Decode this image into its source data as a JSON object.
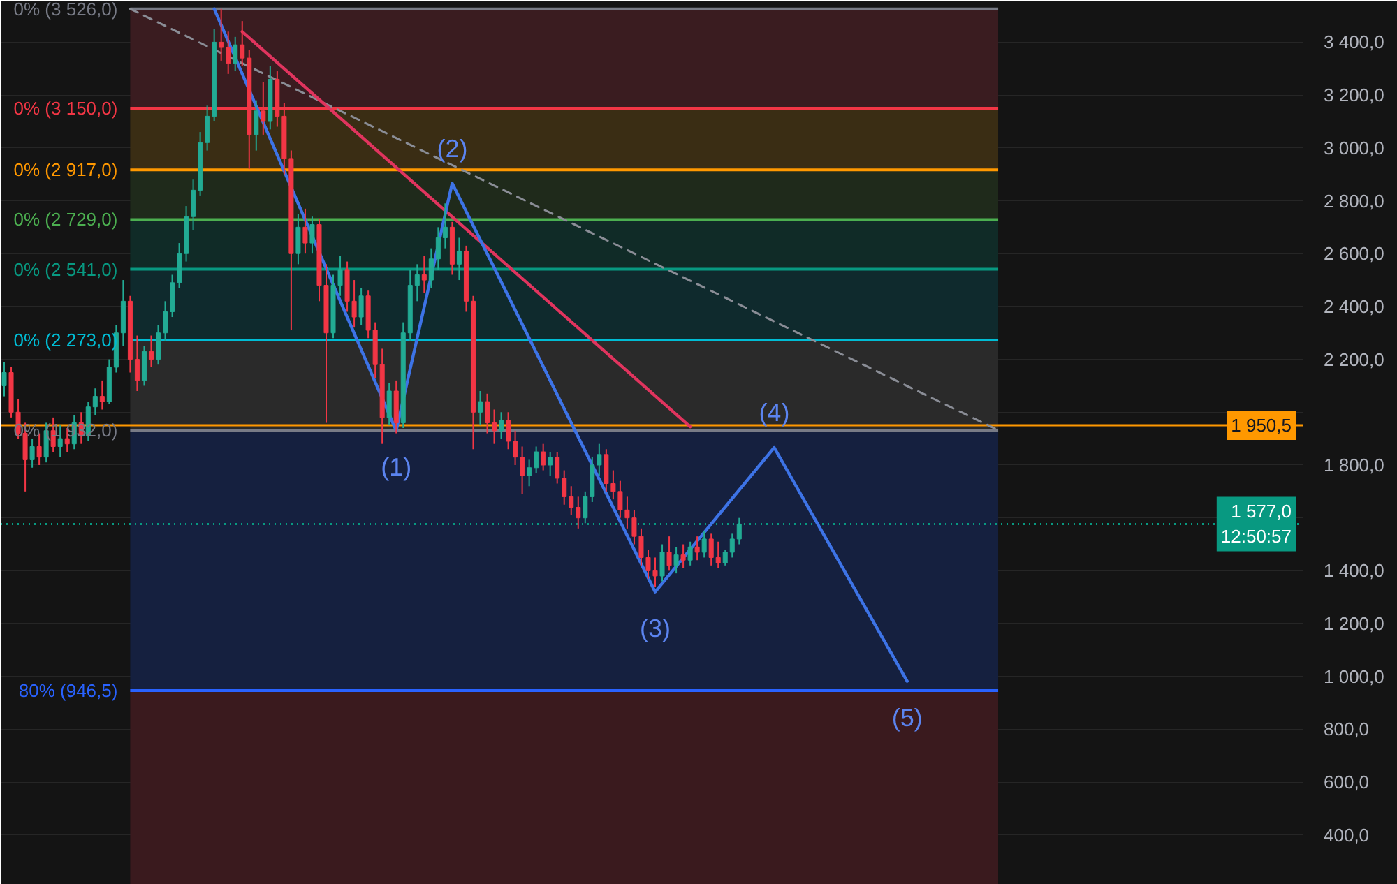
{
  "chart_data": {
    "type": "candlestick",
    "categories": [
      null,
      null,
      null,
      null,
      null,
      null,
      null,
      null,
      null,
      null,
      null,
      null,
      null,
      null,
      null,
      null,
      null,
      null,
      null,
      null,
      null,
      null,
      null,
      null,
      null,
      null,
      null,
      null,
      null,
      null,
      null,
      null,
      null,
      null,
      null,
      null,
      null,
      null,
      null,
      null,
      null,
      null,
      null,
      null,
      null,
      null,
      null,
      null,
      null,
      null,
      null,
      null,
      null,
      null,
      null,
      null,
      null,
      null,
      null,
      null,
      null,
      null,
      null,
      null,
      null,
      null,
      null,
      null,
      null,
      null,
      null,
      null,
      null,
      null,
      null,
      null,
      null,
      null,
      null,
      null,
      null,
      null,
      null,
      null,
      null,
      null,
      null,
      null,
      null,
      null,
      null,
      null,
      null,
      null,
      null,
      null,
      null,
      null,
      null,
      null,
      null,
      null,
      null,
      null,
      null,
      null,
      null,
      null,
      null,
      null,
      null,
      null,
      null,
      null,
      null,
      null,
      null,
      null,
      null,
      null,
      null,
      null,
      null,
      null,
      null,
      null,
      null,
      null,
      null,
      null,
      null,
      null,
      null,
      null,
      null,
      null,
      null,
      null,
      null,
      null,
      null,
      null,
      null,
      null,
      null,
      null,
      null,
      null,
      null,
      null,
      null,
      null,
      null,
      null,
      null,
      null,
      null,
      null,
      null,
      null,
      null,
      null,
      null,
      null,
      null,
      null,
      null,
      null,
      null,
      null,
      null,
      null,
      null,
      null,
      null,
      null,
      null,
      null,
      null,
      null,
      null,
      null,
      null,
      null,
      null,
      null
    ],
    "ohlc": [
      [
        2100,
        2190,
        2060,
        2150
      ],
      [
        2150,
        2170,
        1980,
        2000
      ],
      [
        2000,
        2050,
        1900,
        1920
      ],
      [
        1920,
        1960,
        1700,
        1820
      ],
      [
        1820,
        1900,
        1790,
        1870
      ],
      [
        1870,
        1920,
        1800,
        1830
      ],
      [
        1830,
        1960,
        1810,
        1930
      ],
      [
        1930,
        1980,
        1850,
        1870
      ],
      [
        1870,
        1950,
        1830,
        1900
      ],
      [
        1900,
        1940,
        1850,
        1880
      ],
      [
        1880,
        1990,
        1860,
        1960
      ],
      [
        1960,
        2000,
        1880,
        1910
      ],
      [
        1910,
        2040,
        1890,
        2020
      ],
      [
        2020,
        2090,
        1990,
        2060
      ],
      [
        2060,
        2120,
        2010,
        2040
      ],
      [
        2040,
        2200,
        2030,
        2170
      ],
      [
        2170,
        2330,
        2150,
        2300
      ],
      [
        2300,
        2500,
        2250,
        2420
      ],
      [
        2420,
        2440,
        2150,
        2200
      ],
      [
        2200,
        2290,
        2080,
        2120
      ],
      [
        2120,
        2250,
        2100,
        2230
      ],
      [
        2230,
        2290,
        2170,
        2200
      ],
      [
        2200,
        2330,
        2180,
        2300
      ],
      [
        2300,
        2420,
        2270,
        2380
      ],
      [
        2380,
        2520,
        2360,
        2490
      ],
      [
        2490,
        2640,
        2470,
        2600
      ],
      [
        2600,
        2780,
        2570,
        2740
      ],
      [
        2740,
        2880,
        2690,
        2840
      ],
      [
        2840,
        3060,
        2820,
        3020
      ],
      [
        3020,
        3160,
        2990,
        3120
      ],
      [
        3120,
        3450,
        3100,
        3400
      ],
      [
        3400,
        3526,
        3330,
        3380
      ],
      [
        3380,
        3440,
        3280,
        3320
      ],
      [
        3320,
        3420,
        3290,
        3390
      ],
      [
        3390,
        3480,
        3310,
        3340
      ],
      [
        3340,
        3370,
        2920,
        3050
      ],
      [
        3050,
        3180,
        2990,
        3140
      ],
      [
        3140,
        3250,
        3050,
        3100
      ],
      [
        3100,
        3310,
        3070,
        3260
      ],
      [
        3260,
        3290,
        3080,
        3120
      ],
      [
        3120,
        3170,
        2900,
        2960
      ],
      [
        2960,
        2990,
        2310,
        2600
      ],
      [
        2600,
        2750,
        2560,
        2700
      ],
      [
        2700,
        2770,
        2600,
        2640
      ],
      [
        2640,
        2740,
        2600,
        2710
      ],
      [
        2710,
        2730,
        2420,
        2480
      ],
      [
        2480,
        2560,
        1960,
        2300
      ],
      [
        2300,
        2520,
        2280,
        2480
      ],
      [
        2480,
        2590,
        2440,
        2540
      ],
      [
        2540,
        2570,
        2380,
        2420
      ],
      [
        2420,
        2500,
        2320,
        2360
      ],
      [
        2360,
        2470,
        2330,
        2440
      ],
      [
        2440,
        2460,
        2280,
        2310
      ],
      [
        2310,
        2340,
        2130,
        2180
      ],
      [
        2180,
        2240,
        1880,
        1980
      ],
      [
        1980,
        2110,
        1950,
        2080
      ],
      [
        2080,
        2120,
        1920,
        1960
      ],
      [
        1960,
        2340,
        1940,
        2300
      ],
      [
        2300,
        2540,
        2270,
        2480
      ],
      [
        2480,
        2560,
        2420,
        2520
      ],
      [
        2520,
        2590,
        2450,
        2500
      ],
      [
        2500,
        2620,
        2470,
        2580
      ],
      [
        2580,
        2700,
        2540,
        2660
      ],
      [
        2660,
        2790,
        2620,
        2700
      ],
      [
        2700,
        2720,
        2520,
        2560
      ],
      [
        2560,
        2660,
        2500,
        2610
      ],
      [
        2610,
        2630,
        2380,
        2420
      ],
      [
        2420,
        2440,
        1860,
        2000
      ],
      [
        2000,
        2080,
        1950,
        2040
      ],
      [
        2040,
        2070,
        1920,
        1960
      ],
      [
        1960,
        2010,
        1880,
        1930
      ],
      [
        1930,
        2000,
        1900,
        1970
      ],
      [
        1970,
        2000,
        1860,
        1890
      ],
      [
        1890,
        1930,
        1800,
        1830
      ],
      [
        1830,
        1870,
        1690,
        1760
      ],
      [
        1760,
        1820,
        1720,
        1790
      ],
      [
        1790,
        1870,
        1770,
        1850
      ],
      [
        1850,
        1880,
        1780,
        1800
      ],
      [
        1800,
        1850,
        1760,
        1830
      ],
      [
        1830,
        1850,
        1730,
        1750
      ],
      [
        1750,
        1780,
        1650,
        1680
      ],
      [
        1680,
        1720,
        1610,
        1640
      ],
      [
        1640,
        1680,
        1560,
        1600
      ],
      [
        1600,
        1700,
        1580,
        1680
      ],
      [
        1680,
        1830,
        1660,
        1800
      ],
      [
        1800,
        1880,
        1760,
        1840
      ],
      [
        1840,
        1860,
        1700,
        1730
      ],
      [
        1730,
        1780,
        1670,
        1700
      ],
      [
        1700,
        1740,
        1600,
        1630
      ],
      [
        1630,
        1680,
        1560,
        1600
      ],
      [
        1600,
        1630,
        1500,
        1530
      ],
      [
        1530,
        1560,
        1420,
        1450
      ],
      [
        1450,
        1480,
        1370,
        1400
      ],
      [
        1400,
        1450,
        1340,
        1380
      ],
      [
        1380,
        1500,
        1360,
        1470
      ],
      [
        1470,
        1530,
        1400,
        1420
      ],
      [
        1420,
        1490,
        1390,
        1460
      ],
      [
        1460,
        1500,
        1410,
        1440
      ],
      [
        1440,
        1510,
        1420,
        1490
      ],
      [
        1490,
        1530,
        1440,
        1470
      ],
      [
        1470,
        1550,
        1450,
        1520
      ],
      [
        1520,
        1540,
        1420,
        1450
      ],
      [
        1450,
        1510,
        1410,
        1430
      ],
      [
        1430,
        1480,
        1420,
        1470
      ],
      [
        1470,
        1540,
        1450,
        1520
      ],
      [
        1520,
        1600,
        1500,
        1577
      ],
      null,
      null,
      null,
      null,
      null,
      null,
      null,
      null,
      null,
      null,
      null,
      null,
      null,
      null,
      null,
      null,
      null,
      null,
      null,
      null,
      null,
      null,
      null,
      null,
      null,
      null,
      null,
      null,
      null,
      null,
      null,
      null,
      null,
      null,
      null,
      null,
      null,
      null,
      null,
      null,
      null,
      null,
      null,
      null,
      null,
      null,
      null,
      null,
      null,
      null,
      null,
      null,
      null,
      null,
      null,
      null,
      null,
      null,
      null,
      null,
      null,
      null,
      null,
      null,
      null,
      null,
      null,
      null,
      null,
      null,
      null,
      null,
      null,
      null,
      null,
      null,
      null,
      null,
      null,
      null
    ],
    "colors": [
      "#22ab94",
      "#f23645",
      "#f23645",
      "#f23645",
      "#22ab94",
      "#f23645",
      "#22ab94",
      "#f23645",
      "#22ab94",
      "#f23645",
      "#22ab94",
      "#f23645",
      "#22ab94",
      "#22ab94",
      "#f23645",
      "#22ab94",
      "#22ab94",
      "#22ab94",
      "#f23645",
      "#f23645",
      "#22ab94",
      "#f23645",
      "#22ab94",
      "#22ab94",
      "#22ab94",
      "#22ab94",
      "#22ab94",
      "#22ab94",
      "#22ab94",
      "#22ab94",
      "#22ab94",
      "#f23645",
      "#f23645",
      "#22ab94",
      "#f23645",
      "#f23645",
      "#22ab94",
      "#f23645",
      "#22ab94",
      "#f23645",
      "#f23645",
      "#f23645",
      "#22ab94",
      "#f23645",
      "#22ab94",
      "#f23645",
      "#f23645",
      "#22ab94",
      "#22ab94",
      "#f23645",
      "#f23645",
      "#22ab94",
      "#f23645",
      "#f23645",
      "#f23645",
      "#22ab94",
      "#f23645",
      "#22ab94",
      "#22ab94",
      "#22ab94",
      "#f23645",
      "#22ab94",
      "#22ab94",
      "#22ab94",
      "#f23645",
      "#22ab94",
      "#f23645",
      "#f23645",
      "#22ab94",
      "#f23645",
      "#f23645",
      "#22ab94",
      "#f23645",
      "#f23645",
      "#f23645",
      "#22ab94",
      "#22ab94",
      "#f23645",
      "#22ab94",
      "#f23645",
      "#f23645",
      "#f23645",
      "#f23645",
      "#22ab94",
      "#22ab94",
      "#22ab94",
      "#f23645",
      "#f23645",
      "#f23645",
      "#f23645",
      "#f23645",
      "#f23645",
      "#f23645",
      "#f23645",
      "#22ab94",
      "#f23645",
      "#22ab94",
      "#f23645",
      "#22ab94",
      "#f23645",
      "#22ab94",
      "#f23645",
      "#f23645",
      "#22ab94",
      "#22ab94",
      "#22ab94",
      null,
      null,
      null,
      null,
      null,
      null,
      null,
      null,
      null,
      null,
      null,
      null,
      null,
      null,
      null,
      null,
      null,
      null,
      null,
      null,
      null,
      null,
      null,
      null,
      null,
      null,
      null,
      null,
      null,
      null,
      null,
      null,
      null,
      null,
      null,
      null,
      null,
      null,
      null,
      null,
      null,
      null,
      null,
      null,
      null,
      null,
      null,
      null,
      null,
      null,
      null,
      null,
      null,
      null,
      null,
      null,
      null,
      null,
      null,
      null,
      null,
      null,
      null,
      null,
      null,
      null,
      null,
      null,
      null,
      null,
      null,
      null,
      null,
      null,
      null,
      null,
      null,
      null,
      null,
      null
    ],
    "ylim": [
      212,
      3557
    ],
    "yticks": [
      {
        "value": 400,
        "label": "400,0"
      },
      {
        "value": 600,
        "label": "600,0"
      },
      {
        "value": 800,
        "label": "800,0"
      },
      {
        "value": 1000,
        "label": "1 000,0"
      },
      {
        "value": 1200,
        "label": "1 200,0"
      },
      {
        "value": 1400,
        "label": "1 400,0"
      },
      {
        "value": 1600,
        "label": null
      },
      {
        "value": 1800,
        "label": "1 800,0"
      },
      {
        "value": 2000,
        "label": null
      },
      {
        "value": 2200,
        "label": "2 200,0"
      },
      {
        "value": 2400,
        "label": "2 400,0"
      },
      {
        "value": 2600,
        "label": "2 600,0"
      },
      {
        "value": 2800,
        "label": "2 800,0"
      },
      {
        "value": 3000,
        "label": "3 000,0"
      },
      {
        "value": 3200,
        "label": "3 200,0"
      },
      {
        "value": 3400,
        "label": "3 400,0"
      }
    ],
    "tick_labels": "y",
    "grid": "y",
    "bands": [
      {
        "axis": "y",
        "from": 3526,
        "to": 3150,
        "color": "#3a1c20"
      },
      {
        "axis": "y",
        "from": 3150,
        "to": 2917,
        "color": "#3a2d14"
      },
      {
        "axis": "y",
        "from": 2917,
        "to": 2729,
        "color": "#1f2a1b"
      },
      {
        "axis": "y",
        "from": 2729,
        "to": 2541,
        "color": "#102b27"
      },
      {
        "axis": "y",
        "from": 2541,
        "to": 2273,
        "color": "#0f2a2d"
      },
      {
        "axis": "y",
        "from": 2273,
        "to": 1932,
        "color": "#2a2a2a"
      },
      {
        "axis": "y",
        "from": 1932,
        "to": 946.5,
        "color": "#15203f"
      },
      {
        "axis": "y",
        "from": 946.5,
        "to": 212,
        "color": "#3a1a1e"
      }
    ],
    "ref_lines": [
      {
        "axis": "y",
        "value": 3526,
        "label": "0% (3 526,0)",
        "color": "#787b86"
      },
      {
        "axis": "y",
        "value": 3150,
        "label": "0% (3 150,0)",
        "color": "#f23645"
      },
      {
        "axis": "y",
        "value": 2917,
        "label": "0% (2 917,0)",
        "color": "#ff9800"
      },
      {
        "axis": "y",
        "value": 2729,
        "label": "0% (2 729,0)",
        "color": "#4caf50"
      },
      {
        "axis": "y",
        "value": 2541,
        "label": "0% (2 541,0)",
        "color": "#089981"
      },
      {
        "axis": "y",
        "value": 2273,
        "label": "0% (2 273,0)",
        "color": "#00bcd4"
      },
      {
        "axis": "y",
        "value": 1932,
        "label": "0% (1 932,0)",
        "color": "#787b86"
      },
      {
        "axis": "y",
        "value": 946.5,
        "label": "80% (946,5)",
        "color": "#2962ff"
      },
      {
        "axis": "y",
        "value": 1950.5,
        "label": "1 950,5",
        "color": "#ff9800"
      },
      {
        "axis": "y",
        "value": 1577,
        "label": "1 577,0\n12:50:57",
        "color": "#089981",
        "line_style": "dotted"
      }
    ],
    "series": [
      {
        "type": "line",
        "color": "#8a8d96",
        "line_style": "dashed",
        "values": [
          null,
          null,
          null,
          null,
          null,
          null,
          null,
          null,
          null,
          null,
          null,
          null,
          null,
          null,
          null,
          null,
          null,
          null,
          3526,
          null,
          null,
          null,
          null,
          null,
          null,
          null,
          null,
          null,
          null,
          null,
          null,
          null,
          null,
          null,
          null,
          null,
          null,
          null,
          null,
          null,
          null,
          null,
          null,
          null,
          null,
          null,
          null,
          null,
          null,
          null,
          null,
          null,
          null,
          null,
          null,
          null,
          null,
          null,
          null,
          null,
          null,
          null,
          null,
          null,
          null,
          null,
          null,
          null,
          null,
          null,
          null,
          null,
          null,
          null,
          null,
          null,
          null,
          null,
          null,
          null,
          null,
          null,
          null,
          null,
          null,
          null,
          null,
          null,
          null,
          null,
          null,
          null,
          null,
          null,
          null,
          null,
          null,
          null,
          null,
          null,
          null,
          null,
          null,
          null,
          null,
          null,
          null,
          null,
          null,
          null,
          null,
          null,
          null,
          null,
          null,
          null,
          null,
          null,
          null,
          null,
          null,
          null,
          null,
          null,
          null,
          null,
          null,
          null,
          null,
          null,
          null,
          null,
          null,
          null,
          null,
          null,
          null,
          null,
          null,
          null,
          null,
          null,
          1932,
          null,
          null,
          null,
          null,
          null,
          null,
          null,
          null,
          null,
          null,
          null,
          null,
          null,
          null,
          null,
          null,
          null,
          null,
          null,
          null,
          null,
          null,
          null,
          null,
          null,
          null,
          null,
          null,
          null,
          null,
          null,
          null,
          null,
          null,
          null,
          null,
          null,
          null,
          null,
          null,
          null,
          null,
          null
        ]
      },
      {
        "type": "line",
        "color": "#e0345e",
        "values": [
          null,
          null,
          null,
          null,
          null,
          null,
          null,
          null,
          null,
          null,
          null,
          null,
          null,
          null,
          null,
          null,
          null,
          null,
          null,
          null,
          null,
          null,
          null,
          null,
          null,
          null,
          null,
          null,
          null,
          null,
          null,
          null,
          null,
          null,
          3440,
          null,
          null,
          null,
          null,
          null,
          null,
          null,
          null,
          null,
          null,
          null,
          null,
          null,
          null,
          null,
          null,
          null,
          null,
          null,
          null,
          null,
          null,
          null,
          null,
          null,
          null,
          null,
          null,
          null,
          null,
          null,
          null,
          null,
          null,
          null,
          null,
          null,
          null,
          null,
          null,
          null,
          null,
          null,
          null,
          null,
          null,
          null,
          null,
          null,
          null,
          null,
          null,
          null,
          null,
          null,
          null,
          null,
          null,
          null,
          null,
          null,
          null,
          null,
          1945,
          null,
          null,
          null,
          null,
          null,
          null,
          null,
          null,
          null,
          null,
          null,
          null,
          null,
          null,
          null,
          null,
          null,
          null,
          null,
          null,
          null,
          null,
          null,
          null,
          null,
          null,
          null,
          null,
          null,
          null,
          null,
          null,
          null,
          null,
          null,
          null,
          null,
          null,
          null,
          null,
          null,
          null,
          null,
          null,
          null,
          null,
          null,
          null,
          null,
          null,
          null,
          null,
          null,
          null,
          null,
          null,
          null,
          null,
          null,
          null,
          null,
          null,
          null,
          null,
          null,
          null,
          null,
          null,
          null,
          null,
          null,
          null,
          null,
          null,
          null,
          null,
          null,
          null,
          null,
          null,
          null,
          null,
          null,
          null,
          null,
          null,
          null
        ]
      },
      {
        "type": "line",
        "color": "#3d73e6",
        "values": [
          null,
          null,
          null,
          null,
          null,
          null,
          null,
          null,
          null,
          null,
          null,
          null,
          null,
          null,
          null,
          null,
          null,
          null,
          null,
          null,
          null,
          null,
          null,
          null,
          null,
          null,
          null,
          null,
          null,
          null,
          3526,
          null,
          null,
          null,
          null,
          null,
          null,
          null,
          null,
          null,
          null,
          null,
          null,
          null,
          null,
          null,
          null,
          null,
          null,
          null,
          null,
          null,
          null,
          null,
          null,
          null,
          1930,
          null,
          null,
          null,
          null,
          null,
          null,
          null,
          2866,
          null,
          null,
          null,
          null,
          null,
          null,
          null,
          null,
          null,
          null,
          null,
          null,
          null,
          null,
          null,
          null,
          null,
          null,
          null,
          null,
          null,
          null,
          null,
          null,
          null,
          null,
          null,
          null,
          1320,
          null,
          null,
          null,
          null,
          null,
          null,
          null,
          null,
          null,
          null,
          null,
          null,
          null,
          null,
          null,
          null,
          1866,
          null,
          null,
          null,
          null,
          null,
          null,
          null,
          null,
          null,
          null,
          null,
          null,
          null,
          null,
          null,
          null,
          null,
          null,
          982,
          null,
          null,
          null,
          null,
          null,
          null,
          null,
          null,
          null,
          null,
          null,
          null,
          null,
          null,
          null,
          null,
          null,
          null,
          null,
          null,
          null,
          null,
          null,
          null,
          null,
          null,
          null,
          null,
          null,
          null,
          null,
          null,
          null,
          null,
          null,
          null,
          null,
          null,
          null,
          null,
          null,
          null,
          null,
          null,
          null,
          null,
          null,
          null,
          null,
          null,
          null,
          null,
          null,
          null,
          null,
          null
        ]
      }
    ],
    "annotations": [
      {
        "text": "(1)",
        "y": 1930
      },
      {
        "text": "(2)",
        "y": 2866
      },
      {
        "text": "(3)",
        "y": 1320
      },
      {
        "text": "(4)",
        "y": 1866
      },
      {
        "text": "(5)",
        "y": 982
      }
    ]
  }
}
